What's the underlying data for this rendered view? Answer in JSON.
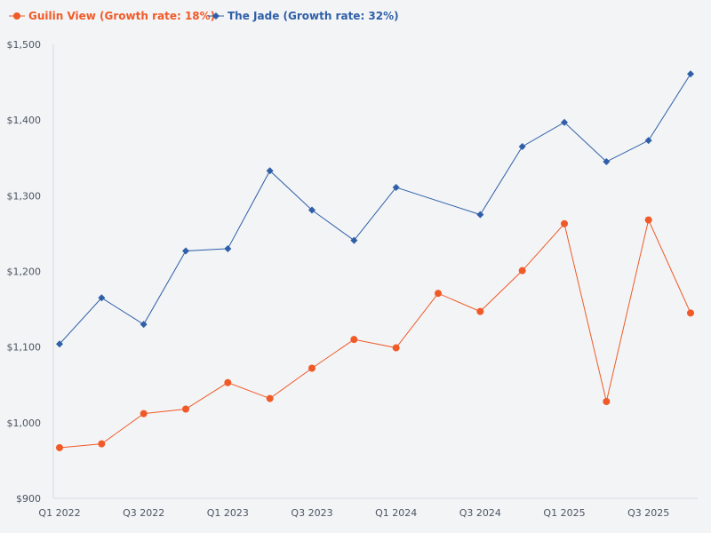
{
  "chart_data": {
    "type": "line",
    "categories": [
      "Q1 2022",
      "Q2 2022",
      "Q3 2022",
      "Q4 2022",
      "Q1 2023",
      "Q2 2023",
      "Q3 2023",
      "Q4 2023",
      "Q1 2024",
      "Q2 2024",
      "Q3 2024",
      "Q4 2024",
      "Q1 2025",
      "Q2 2025",
      "Q3 2025",
      "Q4 2025"
    ],
    "x_tick_labels": [
      "Q1 2022",
      "",
      "Q3 2022",
      "",
      "Q1 2023",
      "",
      "Q3 2023",
      "",
      "Q1 2024",
      "",
      "Q3 2024",
      "",
      "Q1 2025",
      "",
      "Q3 2025",
      ""
    ],
    "series": [
      {
        "name": "Guilin View (Growth rate: 18%)",
        "color": "#f05a28",
        "marker": "circle",
        "values": [
          967,
          972,
          1012,
          1018,
          1053,
          1032,
          1072,
          1110,
          1099,
          1171,
          1147,
          1201,
          1263,
          1028,
          1268,
          1145
        ]
      },
      {
        "name": "The Jade (Growth rate: 32%)",
        "color": "#2e5fa8",
        "marker": "diamond",
        "values": [
          1104,
          1165,
          1130,
          1227,
          1230,
          1333,
          1281,
          1241,
          1311,
          null,
          1275,
          1365,
          1397,
          1345,
          1373,
          1461
        ]
      }
    ],
    "y_ticks": [
      900,
      1000,
      1100,
      1200,
      1300,
      1400,
      1500
    ],
    "y_tick_labels": [
      "$900",
      "$1,000",
      "$1,100",
      "$1,200",
      "$1,300",
      "$1,400",
      "$1,500"
    ],
    "ylim": [
      900,
      1500
    ],
    "title": "",
    "xlabel": "",
    "ylabel": "",
    "legend_position": "top-left",
    "grid": false
  }
}
